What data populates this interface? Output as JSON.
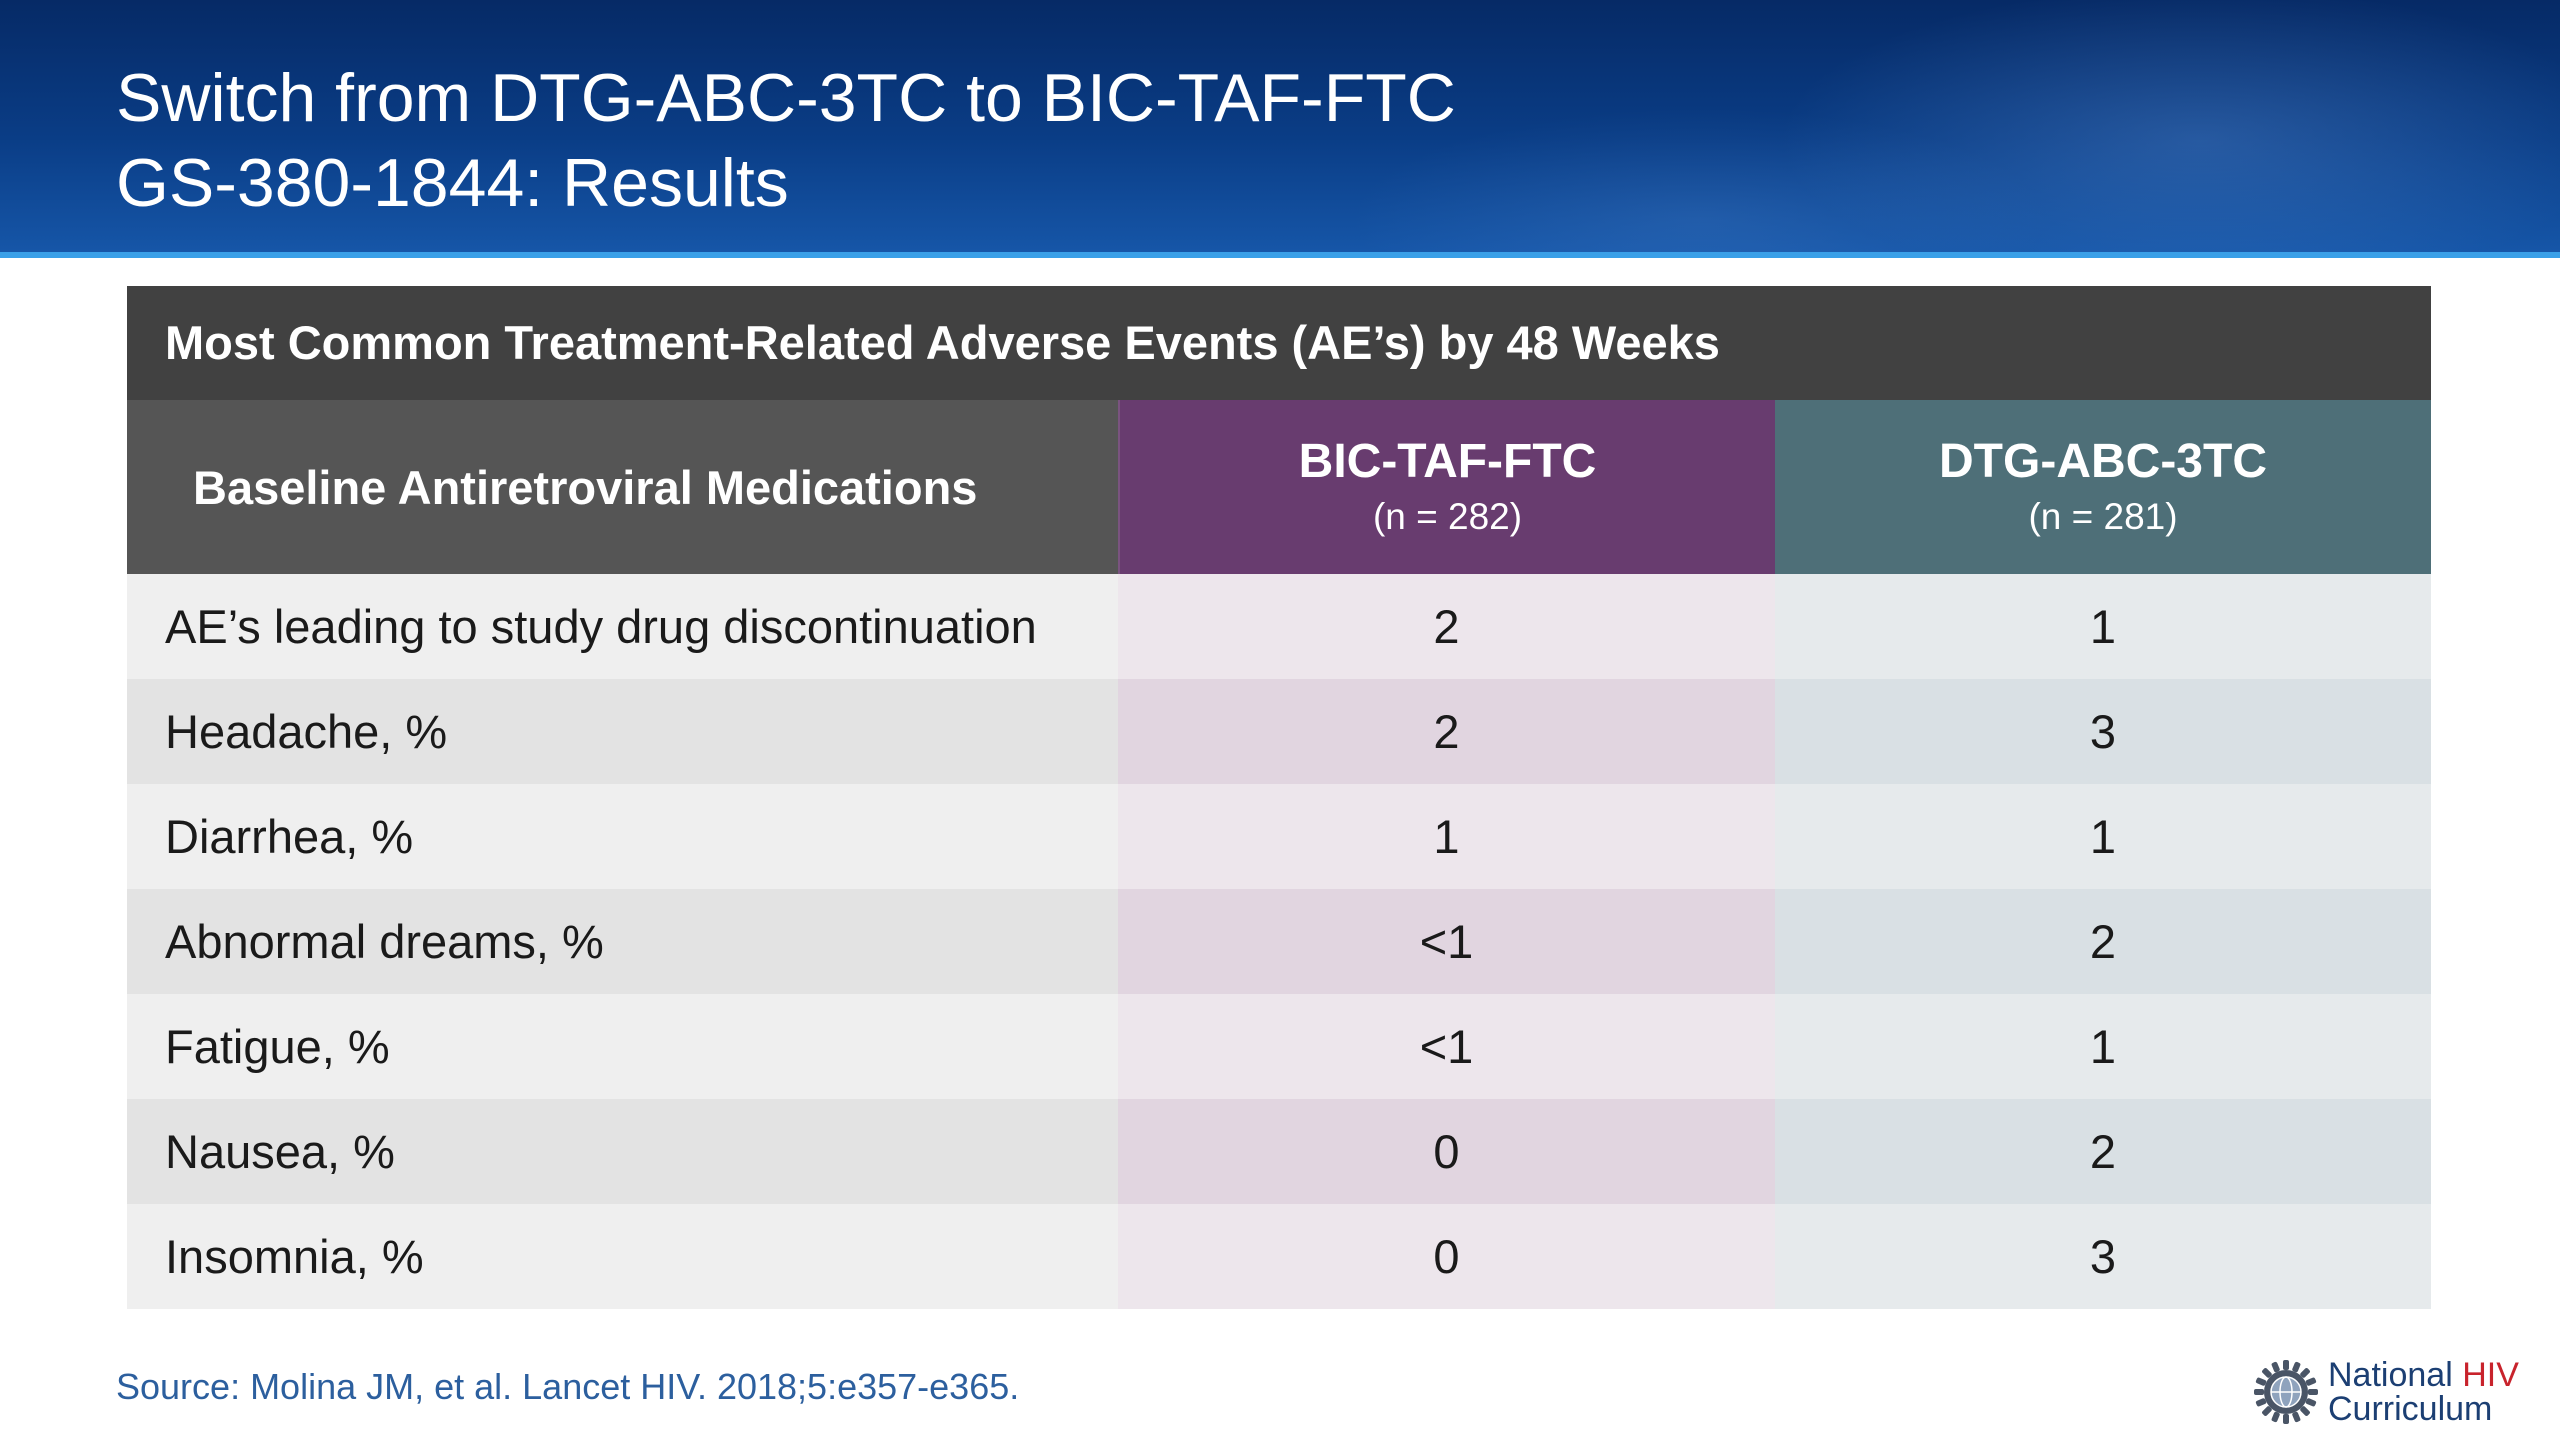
{
  "slide": {
    "title_line1": "Switch from DTG-ABC-3TC to BIC-TAF-FTC",
    "title_line2": "GS-380-1844: Results"
  },
  "table": {
    "title": "Most Common Treatment-Related Adverse Events (AE’s) by 48 Weeks",
    "header": {
      "col1": "Baseline Antiretroviral Medications",
      "col2_name": "BIC-TAF-FTC",
      "col2_n": "(n = 282)",
      "col3_name": "DTG-ABC-3TC",
      "col3_n": "(n = 281)"
    },
    "rows": [
      {
        "label": "AE’s leading to study drug discontinuation",
        "bic": "2",
        "dtg": "1"
      },
      {
        "label": "Headache, %",
        "bic": "2",
        "dtg": "3"
      },
      {
        "label": "Diarrhea, %",
        "bic": "1",
        "dtg": "1"
      },
      {
        "label": "Abnormal dreams, %",
        "bic": "<1",
        "dtg": "2"
      },
      {
        "label": "Fatigue, %",
        "bic": "<1",
        "dtg": "1"
      },
      {
        "label": "Nausea, %",
        "bic": "0",
        "dtg": "2"
      },
      {
        "label": "Insomnia, %",
        "bic": "0",
        "dtg": "3"
      }
    ]
  },
  "footer": {
    "source": "Source: Molina JM, et al. Lancet HIV. 2018;5:e357-e365.",
    "logo_national": "National",
    "logo_hiv": "HIV",
    "logo_curriculum": "Curriculum",
    "logo_icon": "gear-globe-icon"
  },
  "colors": {
    "banner": "#0a3d86",
    "table_title_bg": "#414141",
    "bic_header": "#683c6f",
    "dtg_header": "#4e6f78",
    "source_text": "#2c5f9e",
    "logo_hiv": "#c8232c"
  }
}
